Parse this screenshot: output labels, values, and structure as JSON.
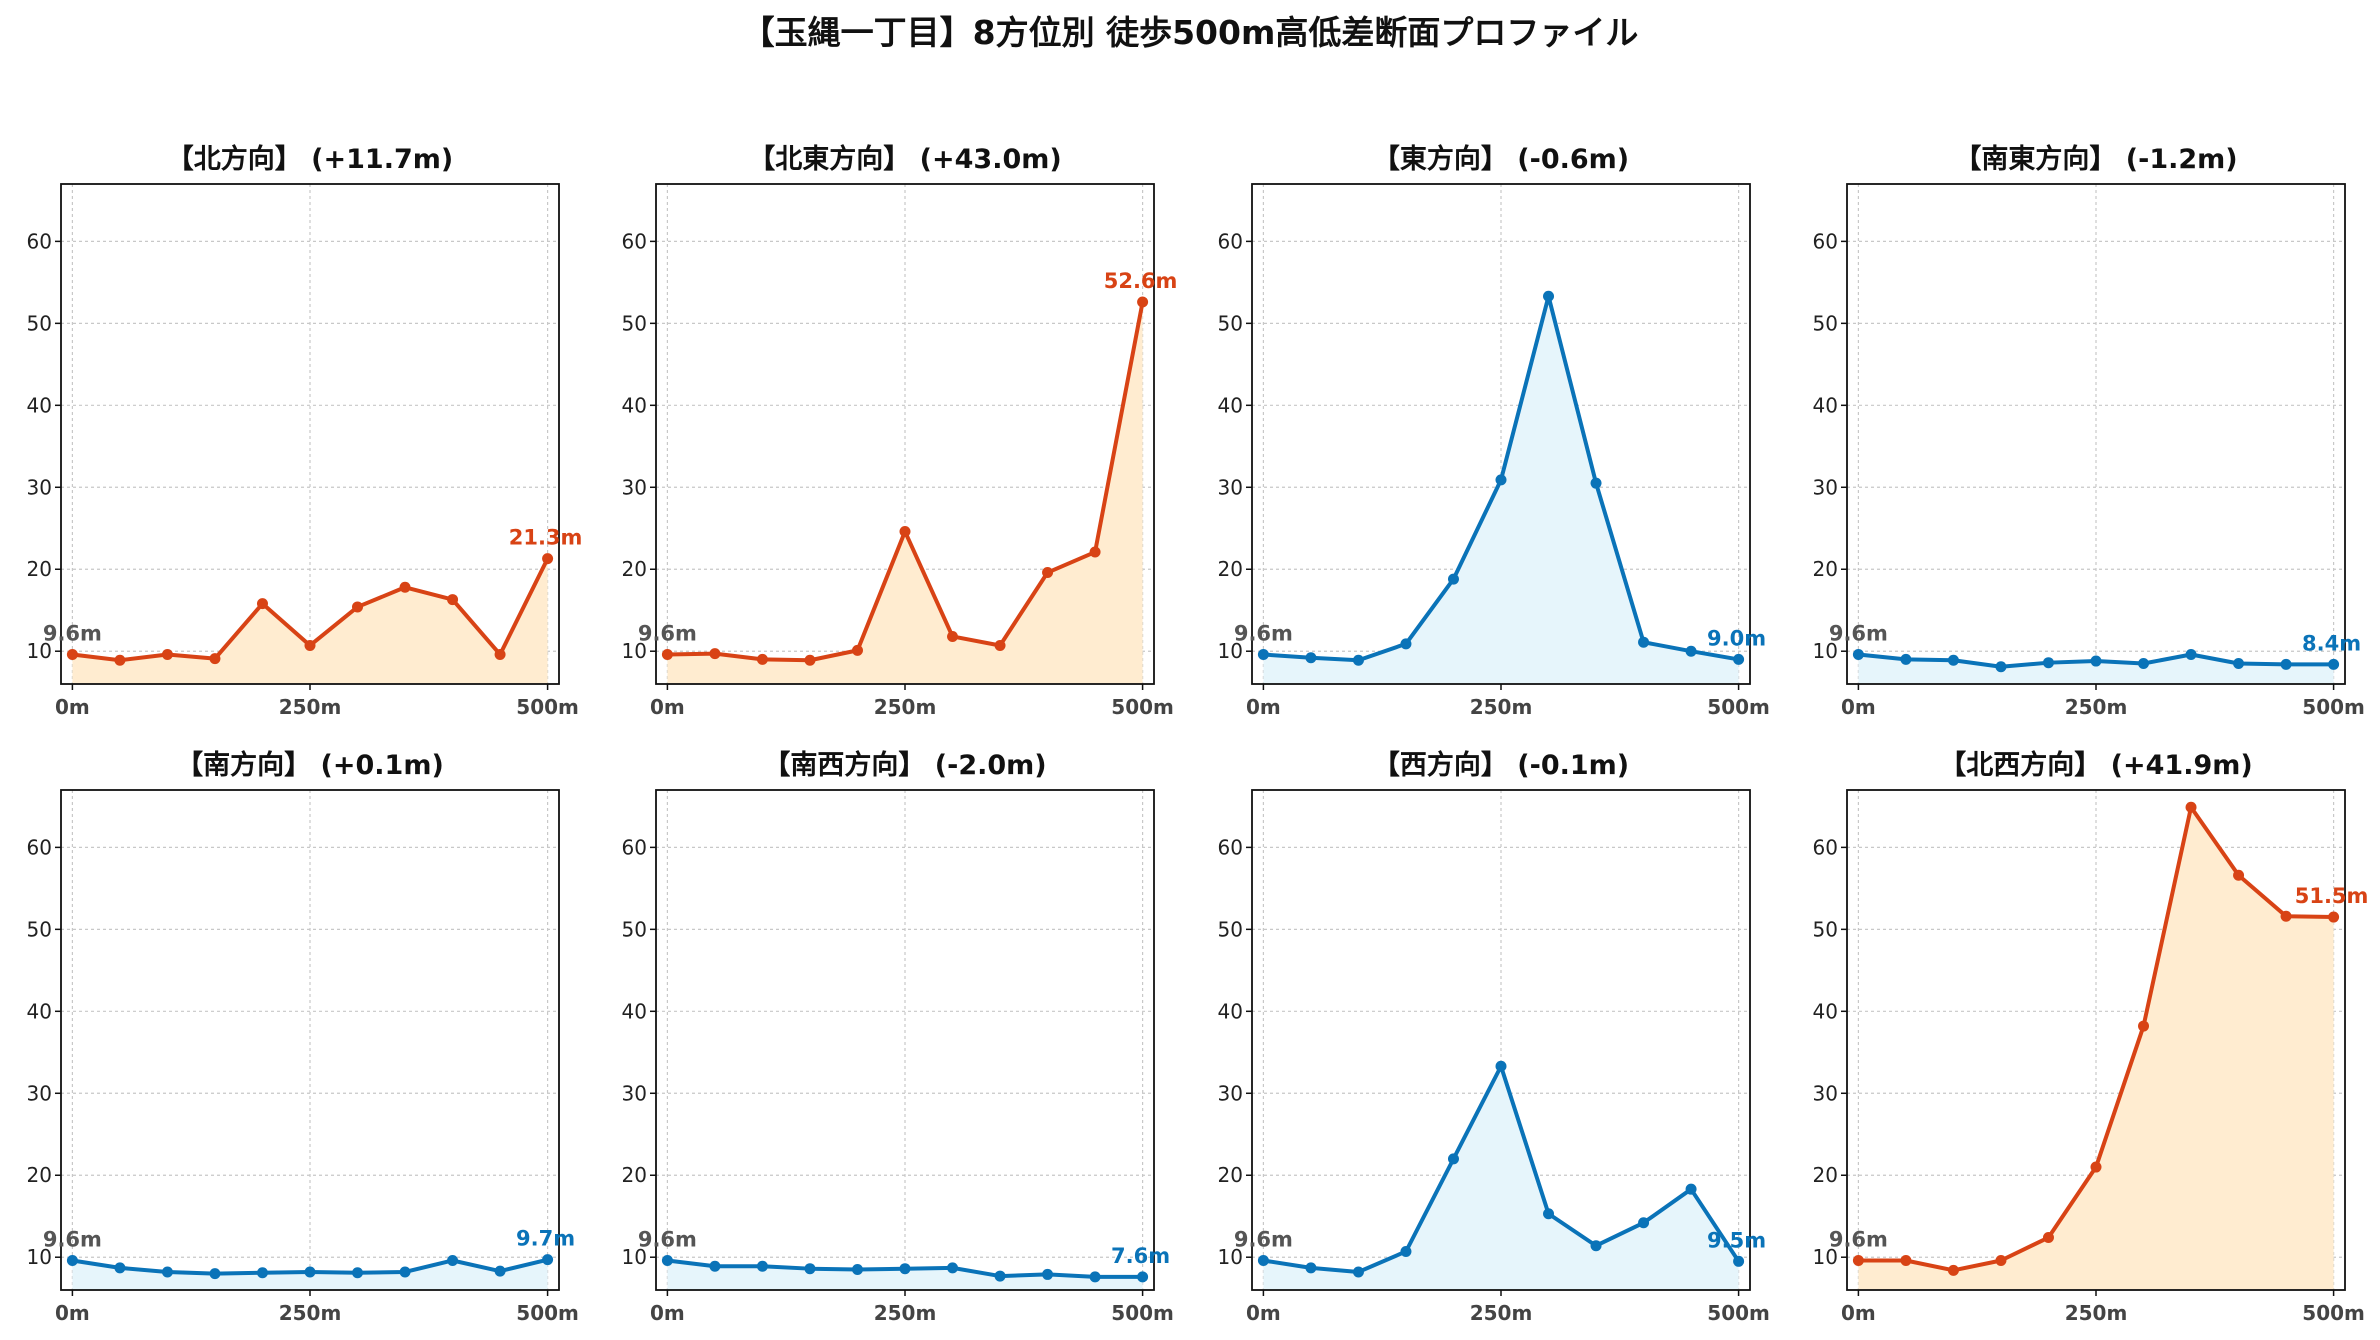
{
  "title": "【玉縄一丁目】8方位別 徒歩500m高低差断面プロファイル",
  "colors": {
    "up_line": "#d84315",
    "up_fill": "#ffecd0",
    "down_line": "#0a73b8",
    "down_fill": "#e6f5fb",
    "grid": "#c8c8c8",
    "start_label": "#555555"
  },
  "chart_data": [
    {
      "type": "line",
      "title": "【北方向】 (+11.7m)",
      "trend": "up",
      "x": [
        0,
        50,
        100,
        150,
        200,
        250,
        300,
        350,
        400,
        450,
        500
      ],
      "y": [
        9.6,
        8.9,
        9.6,
        9.1,
        15.8,
        10.7,
        15.4,
        17.8,
        16.3,
        9.6,
        21.3
      ],
      "start_label": "9.6m",
      "end_label": "21.3m",
      "xticks": [
        "0m",
        "250m",
        "500m"
      ],
      "yticks": [
        10,
        20,
        30,
        40,
        50,
        60
      ],
      "ylim": [
        6,
        67
      ],
      "xlim": [
        -12,
        512
      ],
      "grid": true
    },
    {
      "type": "line",
      "title": "【北東方向】 (+43.0m)",
      "trend": "up",
      "x": [
        0,
        50,
        100,
        150,
        200,
        250,
        300,
        350,
        400,
        450,
        500
      ],
      "y": [
        9.6,
        9.7,
        9.0,
        8.9,
        10.1,
        24.6,
        11.8,
        10.7,
        19.6,
        22.1,
        52.6
      ],
      "start_label": "9.6m",
      "end_label": "52.6m",
      "xticks": [
        "0m",
        "250m",
        "500m"
      ],
      "yticks": [
        10,
        20,
        30,
        40,
        50,
        60
      ],
      "ylim": [
        6,
        67
      ],
      "xlim": [
        -12,
        512
      ],
      "grid": true
    },
    {
      "type": "line",
      "title": "【東方向】 (-0.6m)",
      "trend": "down",
      "x": [
        0,
        50,
        100,
        150,
        200,
        250,
        300,
        350,
        400,
        450,
        500
      ],
      "y": [
        9.6,
        9.2,
        8.9,
        10.9,
        18.8,
        30.9,
        53.3,
        30.5,
        11.1,
        10.0,
        9.0
      ],
      "start_label": "9.6m",
      "end_label": "9.0m",
      "xticks": [
        "0m",
        "250m",
        "500m"
      ],
      "yticks": [
        10,
        20,
        30,
        40,
        50,
        60
      ],
      "ylim": [
        6,
        67
      ],
      "xlim": [
        -12,
        512
      ],
      "grid": true
    },
    {
      "type": "line",
      "title": "【南東方向】 (-1.2m)",
      "trend": "down",
      "x": [
        0,
        50,
        100,
        150,
        200,
        250,
        300,
        350,
        400,
        450,
        500
      ],
      "y": [
        9.6,
        9.0,
        8.9,
        8.1,
        8.6,
        8.8,
        8.5,
        9.6,
        8.5,
        8.4,
        8.4
      ],
      "start_label": "9.6m",
      "end_label": "8.4m",
      "xticks": [
        "0m",
        "250m",
        "500m"
      ],
      "yticks": [
        10,
        20,
        30,
        40,
        50,
        60
      ],
      "ylim": [
        6,
        67
      ],
      "xlim": [
        -12,
        512
      ],
      "grid": true
    },
    {
      "type": "line",
      "title": "【南方向】 (+0.1m)",
      "trend": "down",
      "x": [
        0,
        50,
        100,
        150,
        200,
        250,
        300,
        350,
        400,
        450,
        500
      ],
      "y": [
        9.6,
        8.7,
        8.2,
        8.0,
        8.1,
        8.2,
        8.1,
        8.2,
        9.6,
        8.3,
        9.7
      ],
      "start_label": "9.6m",
      "end_label": "9.7m",
      "xticks": [
        "0m",
        "250m",
        "500m"
      ],
      "yticks": [
        10,
        20,
        30,
        40,
        50,
        60
      ],
      "ylim": [
        6,
        67
      ],
      "xlim": [
        -12,
        512
      ],
      "grid": true
    },
    {
      "type": "line",
      "title": "【南西方向】 (-2.0m)",
      "trend": "down",
      "x": [
        0,
        50,
        100,
        150,
        200,
        250,
        300,
        350,
        400,
        450,
        500
      ],
      "y": [
        9.6,
        8.9,
        8.9,
        8.6,
        8.5,
        8.6,
        8.7,
        7.7,
        7.9,
        7.6,
        7.6
      ],
      "start_label": "9.6m",
      "end_label": "7.6m",
      "xticks": [
        "0m",
        "250m",
        "500m"
      ],
      "yticks": [
        10,
        20,
        30,
        40,
        50,
        60
      ],
      "ylim": [
        6,
        67
      ],
      "xlim": [
        -12,
        512
      ],
      "grid": true
    },
    {
      "type": "line",
      "title": "【西方向】 (-0.1m)",
      "trend": "down",
      "x": [
        0,
        50,
        100,
        150,
        200,
        250,
        300,
        350,
        400,
        450,
        500
      ],
      "y": [
        9.6,
        8.7,
        8.2,
        10.7,
        22.0,
        33.3,
        15.3,
        11.4,
        14.2,
        18.3,
        9.5
      ],
      "start_label": "9.6m",
      "end_label": "9.5m",
      "xticks": [
        "0m",
        "250m",
        "500m"
      ],
      "yticks": [
        10,
        20,
        30,
        40,
        50,
        60
      ],
      "ylim": [
        6,
        67
      ],
      "xlim": [
        -12,
        512
      ],
      "grid": true
    },
    {
      "type": "line",
      "title": "【北西方向】 (+41.9m)",
      "trend": "up",
      "x": [
        0,
        50,
        100,
        150,
        200,
        250,
        300,
        350,
        400,
        450,
        500
      ],
      "y": [
        9.6,
        9.6,
        8.4,
        9.6,
        12.4,
        21.0,
        38.2,
        64.9,
        56.6,
        51.6,
        51.5
      ],
      "start_label": "9.6m",
      "end_label": "51.5m",
      "xticks": [
        "0m",
        "250m",
        "500m"
      ],
      "yticks": [
        10,
        20,
        30,
        40,
        50,
        60
      ],
      "ylim": [
        6,
        67
      ],
      "xlim": [
        -12,
        512
      ],
      "grid": true
    }
  ]
}
